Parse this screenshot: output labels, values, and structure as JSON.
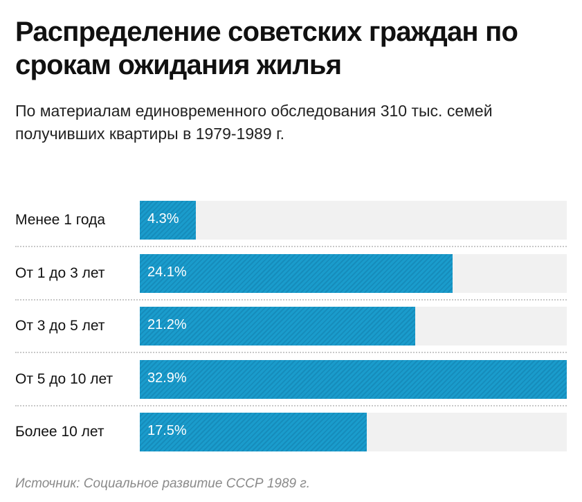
{
  "chart_data": {
    "type": "bar",
    "orientation": "horizontal",
    "title": "Распределение советских граждан по срокам ожидания жилья",
    "subtitle": "По материалам единовременного обследования 310 тыс. семей получивших квартиры в 1979-1989 г.",
    "categories": [
      "Менее 1 года",
      "От 1 до 3 лет",
      "От 3 до 5 лет",
      "От 5 до 10 лет",
      "Более 10 лет"
    ],
    "values": [
      4.3,
      24.1,
      21.2,
      32.9,
      17.5
    ],
    "value_labels": [
      "4.3%",
      "24.1%",
      "21.2%",
      "32.9%",
      "17.5%"
    ],
    "unit": "%",
    "xlim": [
      0,
      32.9
    ],
    "grid": false,
    "bar_color": "#1a9ccc",
    "track_color": "#f1f1f1",
    "source": "Источник: Социальное развитие СССР 1989 г."
  }
}
